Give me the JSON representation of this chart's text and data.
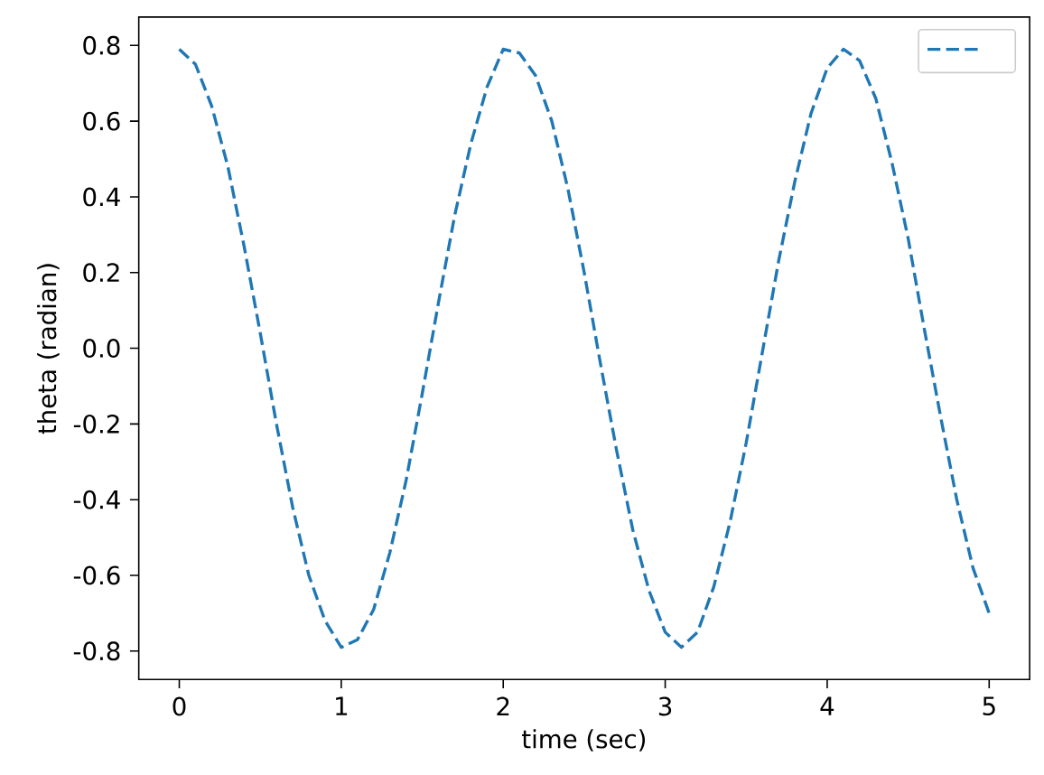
{
  "chart_data": {
    "type": "line",
    "xlabel": "time (sec)",
    "ylabel": "theta (radian)",
    "x": [
      0,
      0.1,
      0.2,
      0.3,
      0.4,
      0.5,
      0.6,
      0.7,
      0.8,
      0.9,
      1.0,
      1.1,
      1.2,
      1.3,
      1.4,
      1.5,
      1.6,
      1.7,
      1.8,
      1.9,
      2.0,
      2.1,
      2.2,
      2.3,
      2.4,
      2.5,
      2.6,
      2.7,
      2.8,
      2.9,
      3.0,
      3.1,
      3.2,
      3.3,
      3.4,
      3.5,
      3.6,
      3.7,
      3.8,
      3.9,
      4.0,
      4.1,
      4.2,
      4.3,
      4.4,
      4.5,
      4.6,
      4.7,
      4.8,
      4.9,
      5.0
    ],
    "series": [
      {
        "color": "#1f77b4",
        "values": [
          0.79,
          0.75,
          0.64,
          0.48,
          0.27,
          0.04,
          -0.2,
          -0.42,
          -0.6,
          -0.72,
          -0.79,
          -0.77,
          -0.69,
          -0.54,
          -0.35,
          -0.12,
          0.12,
          0.35,
          0.54,
          0.69,
          0.79,
          0.78,
          0.72,
          0.6,
          0.42,
          0.2,
          -0.04,
          -0.27,
          -0.48,
          -0.64,
          -0.75,
          -0.79,
          -0.75,
          -0.63,
          -0.46,
          -0.25,
          -0.01,
          0.23,
          0.44,
          0.62,
          0.74,
          0.79,
          0.76,
          0.66,
          0.49,
          0.29,
          0.05,
          -0.18,
          -0.4,
          -0.58,
          -0.7
        ]
      }
    ],
    "xlim": [
      -0.25,
      5.25
    ],
    "ylim": [
      -0.875,
      0.875
    ],
    "xticks": [
      0,
      1,
      2,
      3,
      4,
      5
    ],
    "yticks": [
      -0.8,
      -0.6,
      -0.4,
      -0.2,
      {
        "value": 0,
        "label": "0.0"
      },
      0.2,
      0.4,
      0.6,
      0.8
    ],
    "line_style": "dashed"
  }
}
